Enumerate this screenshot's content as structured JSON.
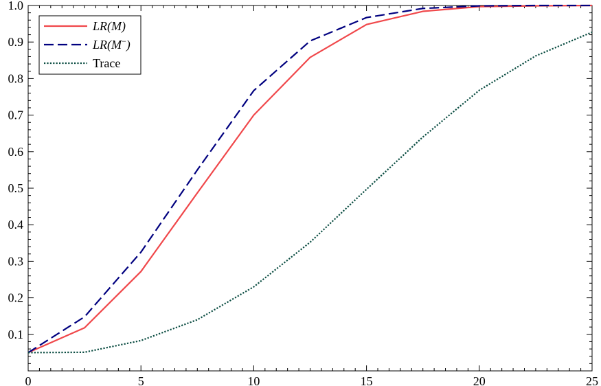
{
  "chart_data": {
    "type": "line",
    "title": "",
    "xlabel": "",
    "ylabel": "",
    "xlim": [
      0,
      25
    ],
    "ylim": [
      0.0,
      1.0
    ],
    "x_ticks": [
      0,
      5,
      10,
      15,
      20,
      25
    ],
    "x_tick_labels": [
      "0",
      "5",
      "10",
      "15",
      "20",
      "25"
    ],
    "y_ticks": [
      0.1,
      0.2,
      0.3,
      0.4,
      0.5,
      0.6,
      0.7,
      0.8,
      0.9,
      1.0
    ],
    "y_tick_labels": [
      "0.1",
      "0.2",
      "0.3",
      "0.4",
      "0.5",
      "0.6",
      "0.7",
      "0.8",
      "0.9",
      "1.0"
    ],
    "grid": false,
    "legend_position": "top-left",
    "x": [
      0,
      2.5,
      5,
      7.5,
      10,
      12.5,
      15,
      17.5,
      20,
      22.5,
      25
    ],
    "series": [
      {
        "name": "LR(M)",
        "legend_base": "LR(M",
        "legend_sup": "",
        "legend_close": ")",
        "color": "#f0474a",
        "dash": "solid",
        "values": [
          0.05,
          0.118,
          0.272,
          0.487,
          0.7,
          0.858,
          0.948,
          0.984,
          0.997,
          0.999,
          1.0
        ]
      },
      {
        "name": "LR(M−)",
        "legend_base": "LR(M",
        "legend_sup": "−",
        "legend_close": ")",
        "color": "#00007f",
        "dash": "dashed",
        "values": [
          0.05,
          0.148,
          0.325,
          0.55,
          0.767,
          0.903,
          0.967,
          0.992,
          0.999,
          1.0,
          1.0
        ]
      },
      {
        "name": "Trace",
        "legend_base": "Trace",
        "legend_sup": "",
        "legend_close": "",
        "color": "#0b4d42",
        "dash": "dotted",
        "values": [
          0.05,
          0.051,
          0.083,
          0.14,
          0.23,
          0.352,
          0.497,
          0.64,
          0.768,
          0.862,
          0.927
        ]
      }
    ]
  }
}
